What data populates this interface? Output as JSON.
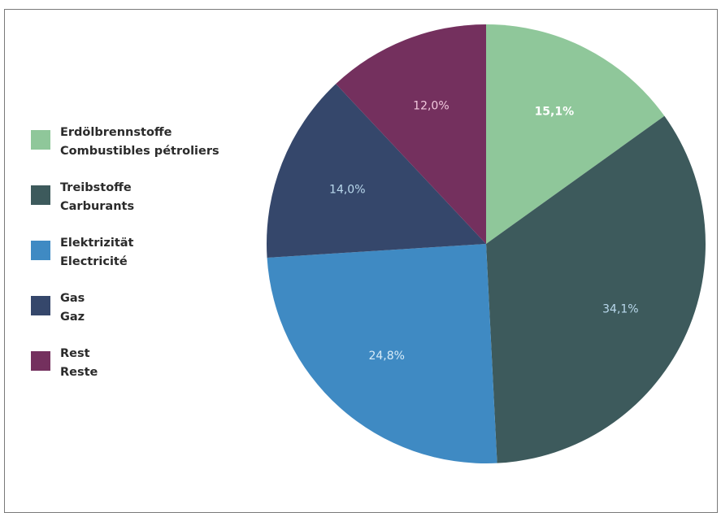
{
  "chart_data": {
    "type": "pie",
    "slices": [
      {
        "label_de": "Erdölbrennstoffe",
        "label_fr": "Combustibles pétroliers",
        "value": 15.1,
        "text": "15,1%",
        "color": "#8fc79a",
        "text_color": "#ffffff",
        "text_weight": "bold"
      },
      {
        "label_de": "Treibstoffe",
        "label_fr": "Carburants",
        "value": 34.1,
        "text": "34,1%",
        "color": "#3d5a5c",
        "text_color": "#b9d8ec",
        "text_weight": "normal"
      },
      {
        "label_de": "Elektrizität",
        "label_fr": "Electricité",
        "value": 24.8,
        "text": "24,8%",
        "color": "#3f8ac3",
        "text_color": "#d8ecf8",
        "text_weight": "normal"
      },
      {
        "label_de": "Gas",
        "label_fr": "Gaz",
        "value": 14.0,
        "text": "14,0%",
        "color": "#35476b",
        "text_color": "#b9d8ec",
        "text_weight": "normal"
      },
      {
        "label_de": "Rest",
        "label_fr": "Reste",
        "value": 12.0,
        "text": "12,0%",
        "color": "#74305e",
        "text_color": "#f1c9dd",
        "text_weight": "normal"
      }
    ],
    "start_angle_deg": 0,
    "direction": "clockwise",
    "legend_placement": "left"
  }
}
